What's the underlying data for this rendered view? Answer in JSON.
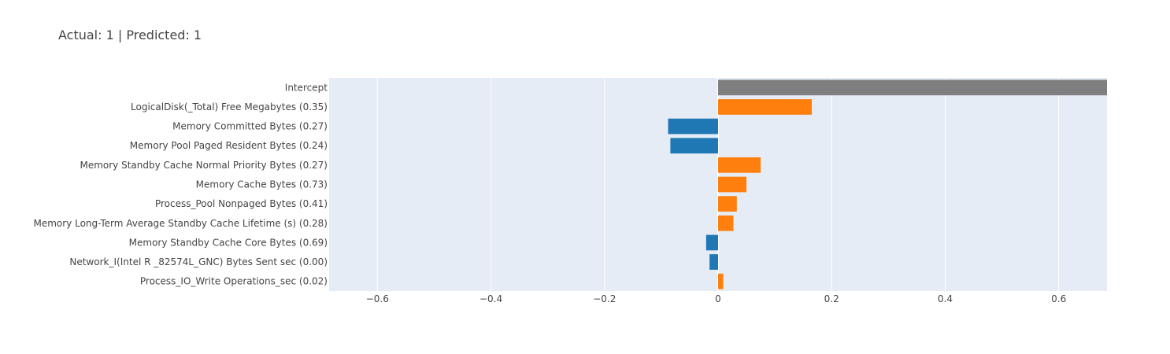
{
  "chart_data": {
    "type": "bar",
    "orientation": "horizontal",
    "title": "Actual: 1 | Predicted: 1",
    "xlabel": "",
    "ylabel": "",
    "xlim": [
      -0.685,
      0.685
    ],
    "xticks": [
      "−0.6",
      "−0.4",
      "−0.2",
      "0",
      "0.2",
      "0.4",
      "0.6"
    ],
    "xtick_values": [
      -0.6,
      -0.4,
      -0.2,
      0,
      0.2,
      0.4,
      0.6
    ],
    "grid": true,
    "legend": "none",
    "colors": {
      "intercept": "#7f7f7f",
      "positive": "#ff7f0e",
      "negative": "#1f77b4",
      "plot_bg": "#e5ecf6",
      "grid": "#ffffff"
    },
    "categories": [
      "Intercept",
      "LogicalDisk(_Total) Free Megabytes (0.35)",
      "Memory Committed Bytes (0.27)",
      "Memory Pool Paged Resident Bytes (0.24)",
      "Memory Standby Cache Normal Priority Bytes (0.27)",
      "Memory Cache Bytes (0.73)",
      "Process_Pool Nonpaged Bytes (0.41)",
      "Memory Long-Term Average Standby Cache Lifetime (s) (0.28)",
      "Memory Standby Cache Core Bytes (0.69)",
      "Network_I(Intel R _82574L_GNC) Bytes Sent sec (0.00)",
      "Process_IO_Write Operations_sec (0.02)"
    ],
    "values": [
      0.7,
      0.165,
      -0.088,
      -0.084,
      0.075,
      0.05,
      0.033,
      0.027,
      -0.021,
      -0.015,
      0.009
    ]
  }
}
